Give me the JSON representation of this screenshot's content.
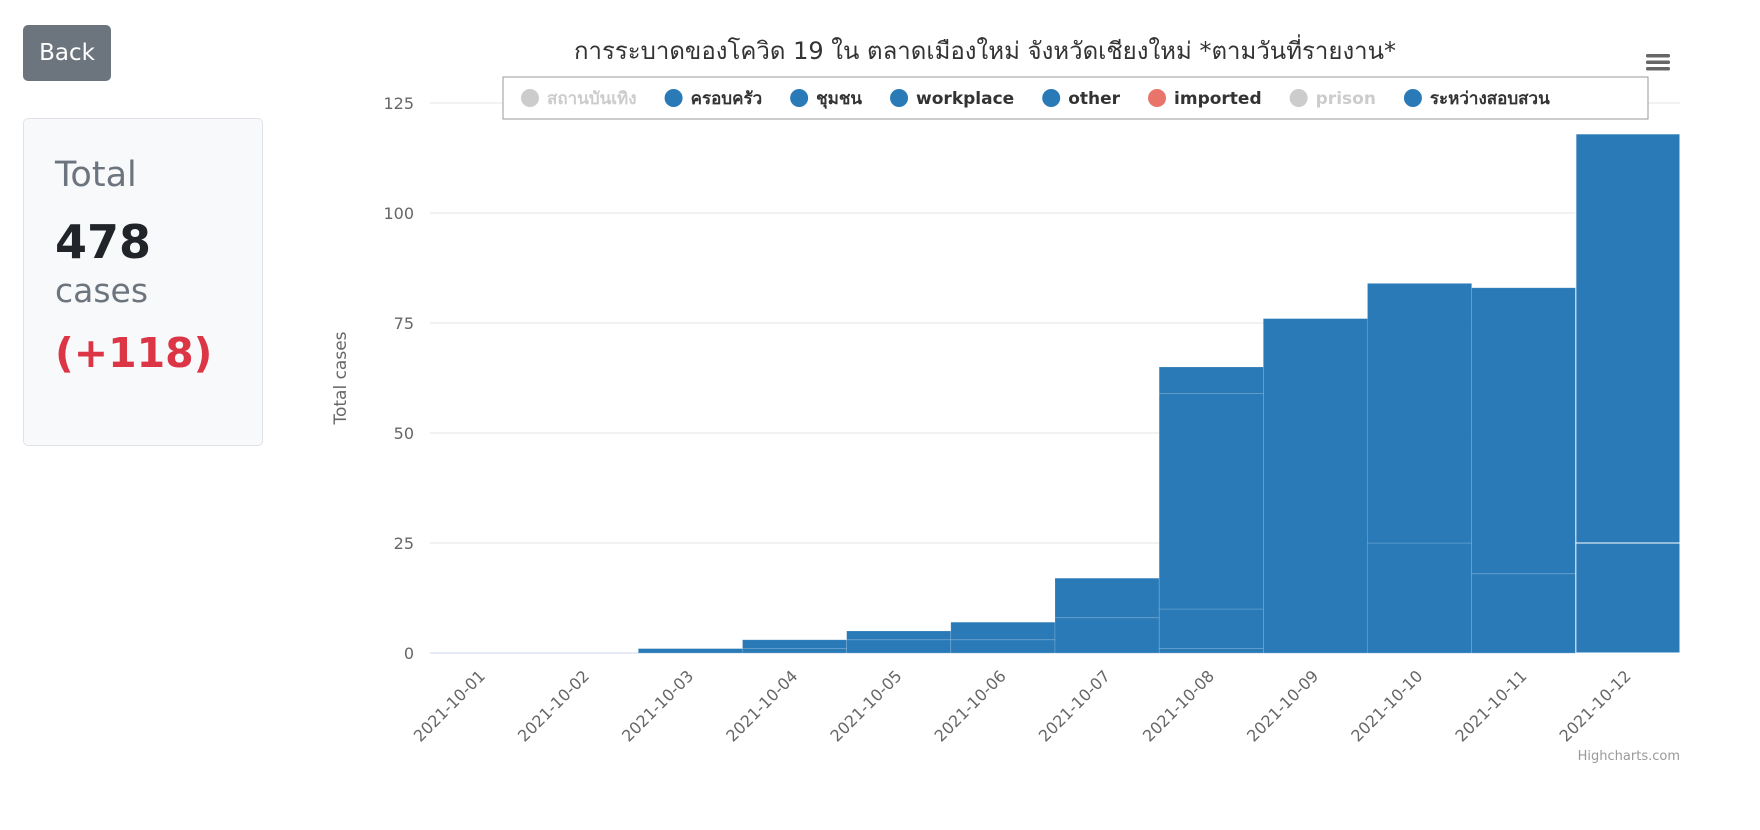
{
  "back_button": {
    "label": "Back"
  },
  "summary": {
    "label": "Total",
    "value": "478",
    "unit": "cases",
    "delta": "(+118)"
  },
  "credits": "Highcharts.com",
  "chart_data": {
    "type": "bar",
    "stacked": true,
    "title": "การระบาดของโควิด 19 ใน ตลาดเมืองใหม่ จังหวัดเชียงใหม่ *ตามวันที่รายงาน*",
    "xlabel": "",
    "ylabel": "Total cases",
    "ylim": [
      0,
      125
    ],
    "yticks": [
      0,
      25,
      50,
      75,
      100,
      125
    ],
    "grid": true,
    "legend_position": "top",
    "categories": [
      "2021-10-01",
      "2021-10-02",
      "2021-10-03",
      "2021-10-04",
      "2021-10-05",
      "2021-10-06",
      "2021-10-07",
      "2021-10-08",
      "2021-10-09",
      "2021-10-10",
      "2021-10-11",
      "2021-10-12"
    ],
    "series": [
      {
        "name": "สถานบันเทิง",
        "color": "#cccccc",
        "visible": false,
        "values": [
          0,
          0,
          0,
          0,
          0,
          0,
          0,
          0,
          0,
          0,
          0,
          0
        ]
      },
      {
        "name": "ครอบครัว",
        "color": "#2a7ab8",
        "visible": true,
        "values": [
          0,
          0,
          0,
          0,
          0,
          0,
          0,
          1,
          0,
          0,
          0,
          0
        ]
      },
      {
        "name": "ชุมชน",
        "color": "#2a7ab8",
        "visible": true,
        "values": [
          0,
          0,
          0,
          0,
          0,
          0,
          0,
          9,
          0,
          0,
          0,
          0
        ]
      },
      {
        "name": "workplace",
        "color": "#2a7ab8",
        "visible": true,
        "values": [
          0,
          0,
          0,
          0,
          0,
          0,
          0,
          0,
          0,
          0,
          0,
          0
        ]
      },
      {
        "name": "other",
        "color": "#2a7ab8",
        "visible": true,
        "values": [
          0,
          0,
          1,
          1,
          3,
          3,
          8,
          49,
          76,
          25,
          18,
          25
        ]
      },
      {
        "name": "imported",
        "color": "#e8746a",
        "visible": true,
        "values": [
          0,
          0,
          0,
          0,
          0,
          0,
          0,
          0,
          0,
          0,
          0,
          0
        ]
      },
      {
        "name": "prison",
        "color": "#cccccc",
        "visible": false,
        "values": [
          0,
          0,
          0,
          0,
          0,
          0,
          0,
          0,
          0,
          0,
          0,
          0
        ]
      },
      {
        "name": "ระหว่างสอบสวน",
        "color": "#2a7ab8",
        "visible": true,
        "values": [
          0,
          0,
          0,
          2,
          2,
          4,
          9,
          6,
          0,
          59,
          65,
          93
        ]
      }
    ],
    "hover_index": 11
  }
}
